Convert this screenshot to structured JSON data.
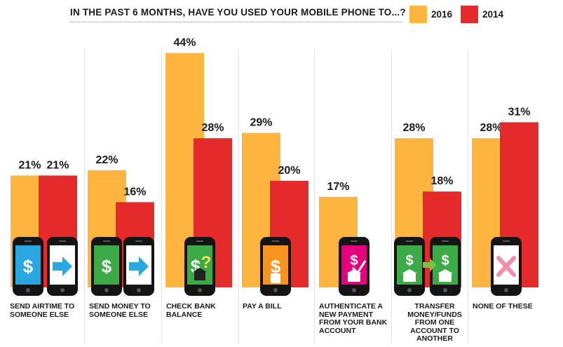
{
  "colors": {
    "2016": "#FDB53F",
    "2014": "#E42A2B",
    "text": "#1a1a1a",
    "phone_body": "#141414",
    "icons": {
      "send-airtime": "#2AA6E0",
      "send-money": "#3DAA48",
      "check-bank": "#3DAA48",
      "pay-bill": "#F7941D",
      "authenticate": "#E5007E",
      "transfer": "#3DAA48",
      "none": "#ffffff"
    }
  },
  "chart_data": {
    "type": "bar",
    "title": "IN THE PAST 6 MONTHS, HAVE YOU USED YOUR MOBILE PHONE TO...?",
    "categories": [
      "SEND AIRTIME TO SOMEONE ELSE",
      "SEND MONEY TO SOMEONE ELSE",
      "CHECK BANK BALANCE",
      "PAY A BILL",
      "AUTHENTICATE A NEW PAYMENT FROM YOUR BANK ACCOUNT",
      "TRANSFER MONEY/FUNDS FROM ONE ACCOUNT TO ANOTHER",
      "NONE OF THESE"
    ],
    "series": [
      {
        "name": "2016",
        "values": [
          21,
          22,
          44,
          29,
          17,
          28,
          28
        ]
      },
      {
        "name": "2014",
        "values": [
          21,
          16,
          28,
          20,
          null,
          18,
          31
        ]
      }
    ],
    "value_suffix": "%",
    "ylim": [
      0,
      44
    ],
    "legend_position": "top-right",
    "grid": false
  },
  "icons": [
    [
      "phone-dollar-icon",
      "arrow-right-icon"
    ],
    [
      "phone-dollar-icon",
      "arrow-right-icon"
    ],
    [
      "phone-dollar-question-icon"
    ],
    [
      "phone-bill-icon"
    ],
    [
      "phone-check-bank-icon"
    ],
    [
      "phone-bank-icon",
      "phone-bank-icon"
    ],
    [
      "phone-x-icon"
    ]
  ]
}
